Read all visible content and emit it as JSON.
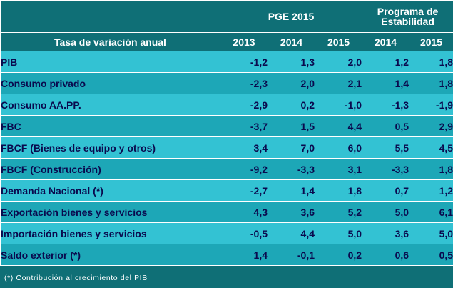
{
  "header": {
    "group_pge": "PGE 2015",
    "group_programa_line1": "Programa de",
    "group_programa_line2": "Estabilidad",
    "row_title": "Tasa de variación anual",
    "years": [
      "2013",
      "2014",
      "2015",
      "2014",
      "2015"
    ]
  },
  "rows": [
    {
      "label": "PIB",
      "values": [
        "-1,2",
        "1,3",
        "2,0",
        "1,2",
        "1,8"
      ]
    },
    {
      "label": "Consumo privado",
      "values": [
        "-2,3",
        "2,0",
        "2,1",
        "1,4",
        "1,8"
      ]
    },
    {
      "label": "Consumo  AA.PP.",
      "values": [
        "-2,9",
        "0,2",
        "-1,0",
        "-1,3",
        "-1,9"
      ]
    },
    {
      "label": "FBC",
      "values": [
        "-3,7",
        "1,5",
        "4,4",
        "0,5",
        "2,9"
      ]
    },
    {
      "label": "FBCF (Bienes de equipo y otros)",
      "values": [
        "3,4",
        "7,0",
        "6,0",
        "5,5",
        "4,5"
      ]
    },
    {
      "label": "FBCF (Construcción)",
      "values": [
        "-9,2",
        "-3,3",
        "3,1",
        "-3,3",
        "1,8"
      ]
    },
    {
      "label": "Demanda Nacional  (*)",
      "values": [
        "-2,7",
        "1,4",
        "1,8",
        "0,7",
        "1,2"
      ]
    },
    {
      "label": "Exportación bienes y servicios",
      "values": [
        "4,3",
        "3,6",
        "5,2",
        "5,0",
        "6,1"
      ]
    },
    {
      "label": "Importación bienes y servicios",
      "values": [
        "-0,5",
        "4,4",
        "5,0",
        "3,6",
        "5,0"
      ]
    },
    {
      "label": "Saldo exterior  (*)",
      "values": [
        "1,4",
        "-0,1",
        "0,2",
        "0,6",
        "0,5"
      ]
    }
  ],
  "footnote": "(*) Contribución al crecimiento del PIB",
  "colors": {
    "background": "#0f6f76",
    "row_light": "#33c2d3",
    "row_dark": "#1da7b7",
    "text_dark": "#0a0a4e",
    "text_light": "#ffffff"
  }
}
